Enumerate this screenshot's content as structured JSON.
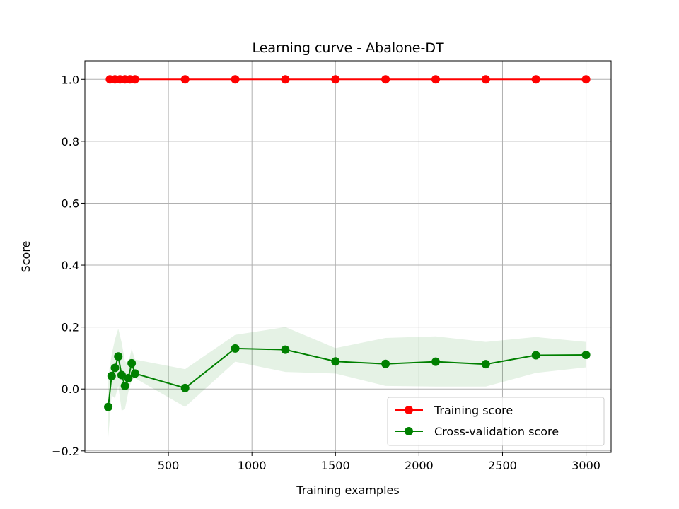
{
  "chart_data": {
    "type": "line",
    "title": "Learning curve - Abalone-DT",
    "xlabel": "Training examples",
    "ylabel": "Score",
    "xlim": [
      0,
      3150
    ],
    "ylim": [
      -0.205,
      1.06
    ],
    "x_ticks": [
      500,
      1000,
      1500,
      2000,
      2500,
      3000
    ],
    "y_ticks": [
      -0.2,
      0.0,
      0.2,
      0.4,
      0.6,
      0.8,
      1.0
    ],
    "x_tick_labels": [
      "500",
      "1000",
      "1500",
      "2000",
      "2500",
      "3000"
    ],
    "y_tick_labels": [
      "−0.2",
      "0.0",
      "0.2",
      "0.4",
      "0.6",
      "0.8",
      "1.0"
    ],
    "grid": true,
    "legend_position": "lower-right",
    "series": [
      {
        "name": "Training score",
        "color": "#ff0000",
        "x": [
          150,
          180,
          210,
          240,
          270,
          300,
          600,
          900,
          1200,
          1500,
          1800,
          2100,
          2400,
          2700,
          3000
        ],
        "y": [
          1.0,
          1.0,
          1.0,
          1.0,
          1.0,
          1.0,
          1.0,
          1.0,
          1.0,
          1.0,
          1.0,
          1.0,
          1.0,
          1.0,
          1.0
        ],
        "band_lower": [
          1.0,
          1.0,
          1.0,
          1.0,
          1.0,
          1.0,
          1.0,
          1.0,
          1.0,
          1.0,
          1.0,
          1.0,
          1.0,
          1.0,
          1.0
        ],
        "band_upper": [
          1.0,
          1.0,
          1.0,
          1.0,
          1.0,
          1.0,
          1.0,
          1.0,
          1.0,
          1.0,
          1.0,
          1.0,
          1.0,
          1.0,
          1.0
        ],
        "band_color": "#ff0000"
      },
      {
        "name": "Cross-validation score",
        "color": "#008000",
        "x": [
          140,
          160,
          180,
          200,
          220,
          240,
          260,
          280,
          300,
          600,
          900,
          1200,
          1500,
          1800,
          2100,
          2400,
          2700,
          3000
        ],
        "y": [
          -0.058,
          0.042,
          0.068,
          0.105,
          0.045,
          0.01,
          0.035,
          0.083,
          0.05,
          0.003,
          0.131,
          0.127,
          0.089,
          0.081,
          0.088,
          0.08,
          0.109,
          0.11
        ],
        "band_lower": [
          -0.155,
          -0.02,
          -0.03,
          0.01,
          -0.07,
          -0.065,
          -0.01,
          0.03,
          0.035,
          -0.058,
          0.088,
          0.055,
          0.05,
          0.01,
          0.008,
          0.008,
          0.052,
          0.07
        ],
        "band_upper": [
          0.04,
          0.11,
          0.16,
          0.195,
          0.15,
          0.09,
          0.08,
          0.13,
          0.095,
          0.064,
          0.175,
          0.2,
          0.132,
          0.165,
          0.17,
          0.152,
          0.168,
          0.152
        ],
        "band_color": "#008000"
      }
    ]
  }
}
